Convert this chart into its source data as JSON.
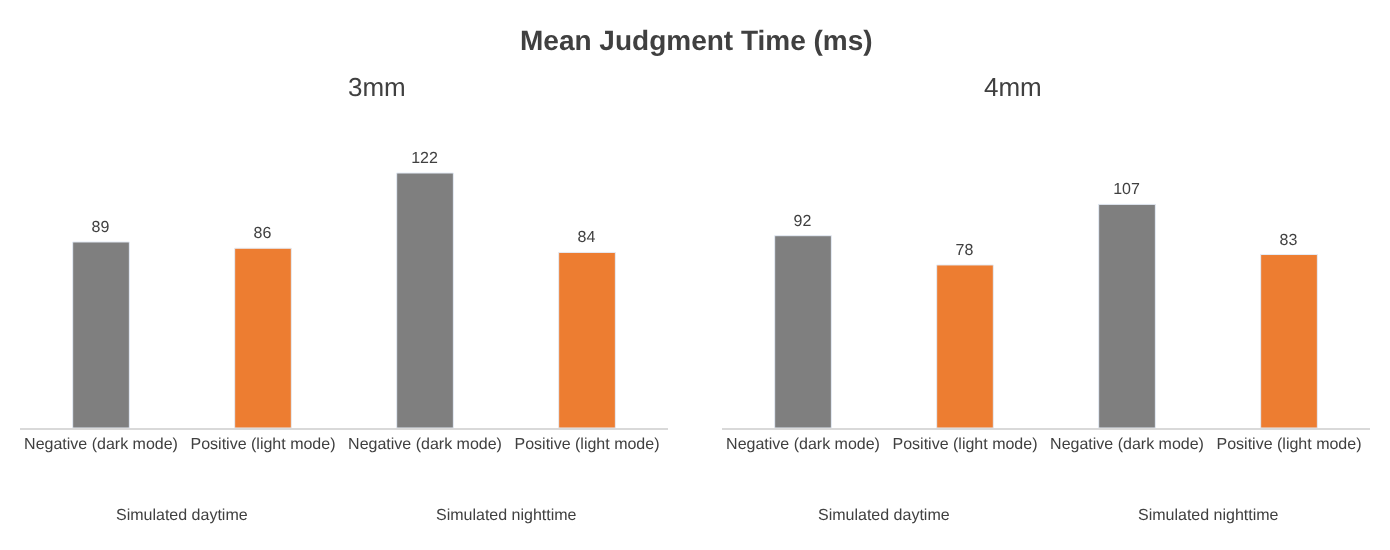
{
  "chart_data": [
    {
      "type": "bar",
      "title": "Mean Judgment Time (ms)",
      "subtitle": "3mm",
      "categories": [
        "Negative (dark mode)",
        "Positive (light mode)",
        "Negative (dark mode)",
        "Positive (light mode)"
      ],
      "values": [
        89,
        86,
        122,
        84
      ],
      "colors": [
        "#7f7f7f",
        "#ed7d31",
        "#7f7f7f",
        "#ed7d31"
      ],
      "data_labels": true,
      "annotations": [
        "Simulated daytime",
        "Simulated nighttime"
      ],
      "tick_labels": "x"
    },
    {
      "type": "bar",
      "subtitle": "4mm",
      "categories": [
        "Negative (dark mode)",
        "Positive (light mode)",
        "Negative (dark mode)",
        "Positive (light mode)"
      ],
      "values": [
        92,
        78,
        107,
        83
      ],
      "colors": [
        "#7f7f7f",
        "#ed7d31",
        "#7f7f7f",
        "#ed7d31"
      ],
      "data_labels": true,
      "annotations": [
        "Simulated daytime",
        "Simulated nighttime"
      ],
      "tick_labels": "x"
    }
  ]
}
